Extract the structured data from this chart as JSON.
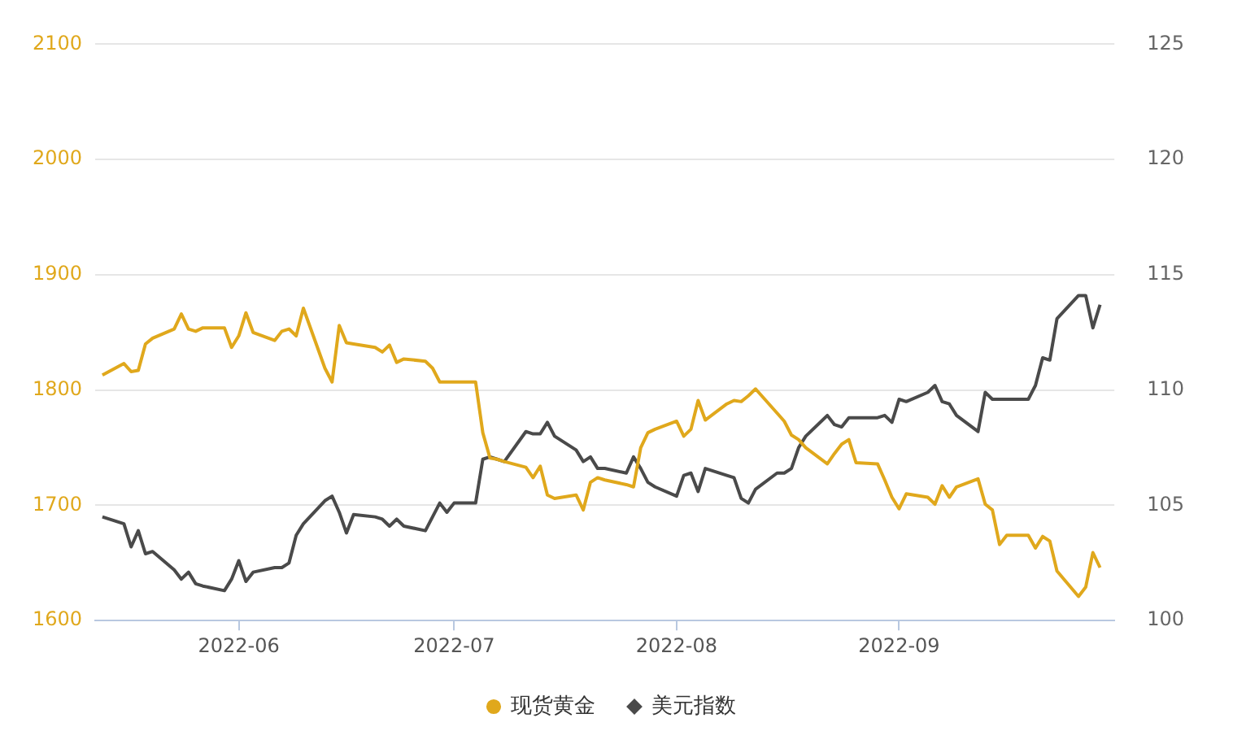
{
  "chart_data": {
    "type": "line",
    "x": [
      "2022-05-13",
      "2022-05-16",
      "2022-05-17",
      "2022-05-18",
      "2022-05-19",
      "2022-05-20",
      "2022-05-23",
      "2022-05-24",
      "2022-05-25",
      "2022-05-26",
      "2022-05-27",
      "2022-05-30",
      "2022-05-31",
      "2022-06-01",
      "2022-06-02",
      "2022-06-03",
      "2022-06-06",
      "2022-06-07",
      "2022-06-08",
      "2022-06-09",
      "2022-06-10",
      "2022-06-13",
      "2022-06-14",
      "2022-06-15",
      "2022-06-16",
      "2022-06-17",
      "2022-06-20",
      "2022-06-21",
      "2022-06-22",
      "2022-06-23",
      "2022-06-24",
      "2022-06-27",
      "2022-06-28",
      "2022-06-29",
      "2022-06-30",
      "2022-07-01",
      "2022-07-04",
      "2022-07-05",
      "2022-07-06",
      "2022-07-07",
      "2022-07-08",
      "2022-07-11",
      "2022-07-12",
      "2022-07-13",
      "2022-07-14",
      "2022-07-15",
      "2022-07-18",
      "2022-07-19",
      "2022-07-20",
      "2022-07-21",
      "2022-07-22",
      "2022-07-25",
      "2022-07-26",
      "2022-07-27",
      "2022-07-28",
      "2022-07-29",
      "2022-08-01",
      "2022-08-02",
      "2022-08-03",
      "2022-08-04",
      "2022-08-05",
      "2022-08-08",
      "2022-08-09",
      "2022-08-10",
      "2022-08-11",
      "2022-08-12",
      "2022-08-15",
      "2022-08-16",
      "2022-08-17",
      "2022-08-18",
      "2022-08-19",
      "2022-08-22",
      "2022-08-23",
      "2022-08-24",
      "2022-08-25",
      "2022-08-26",
      "2022-08-29",
      "2022-08-30",
      "2022-08-31",
      "2022-09-01",
      "2022-09-02",
      "2022-09-05",
      "2022-09-06",
      "2022-09-07",
      "2022-09-08",
      "2022-09-09",
      "2022-09-12",
      "2022-09-13",
      "2022-09-14",
      "2022-09-15",
      "2022-09-16",
      "2022-09-19",
      "2022-09-20",
      "2022-09-21",
      "2022-09-22",
      "2022-09-23",
      "2022-09-26",
      "2022-09-27",
      "2022-09-28",
      "2022-09-29"
    ],
    "series": [
      {
        "name": "现货黄金",
        "color": "#e0a81c",
        "values": [
          1813,
          1823,
          1816,
          1817,
          1840,
          1845,
          1853,
          1866,
          1853,
          1851,
          1854,
          1854,
          1837,
          1847,
          1867,
          1850,
          1843,
          1851,
          1853,
          1847,
          1871,
          1819,
          1807,
          1856,
          1841,
          1840,
          1837,
          1833,
          1839,
          1824,
          1827,
          1825,
          1819,
          1807,
          1807,
          1807,
          1807,
          1763,
          1741,
          1740,
          1738,
          1733,
          1724,
          1734,
          1709,
          1706,
          1709,
          1696,
          1720,
          1724,
          1722,
          1718,
          1716,
          1750,
          1763,
          1766,
          1773,
          1760,
          1766,
          1791,
          1774,
          1788,
          1791,
          1790,
          1795,
          1801,
          1780,
          1773,
          1761,
          1757,
          1750,
          1736,
          1745,
          1753,
          1757,
          1737,
          1736,
          1722,
          1707,
          1697,
          1710,
          1707,
          1701,
          1717,
          1707,
          1716,
          1723,
          1701,
          1696,
          1666,
          1674,
          1674,
          1663,
          1673,
          1669,
          1643,
          1621,
          1629,
          1659,
          1646
        ]
      },
      {
        "name": "美元指数",
        "color": "#4a4a4a",
        "axis": "y2",
        "values": [
          104.5,
          104.2,
          103.2,
          103.9,
          102.9,
          103.0,
          102.2,
          101.8,
          102.1,
          101.6,
          101.5,
          101.3,
          101.8,
          102.6,
          101.7,
          102.1,
          102.3,
          102.3,
          102.5,
          103.7,
          104.2,
          105.2,
          105.4,
          104.7,
          103.8,
          104.6,
          104.5,
          104.4,
          104.1,
          104.4,
          104.1,
          103.9,
          104.5,
          105.1,
          104.7,
          105.1,
          105.1,
          107.0,
          107.1,
          107.0,
          106.9,
          108.2,
          108.1,
          108.1,
          108.6,
          108.0,
          107.4,
          106.9,
          107.1,
          106.6,
          106.6,
          106.4,
          107.1,
          106.6,
          106.0,
          105.8,
          105.4,
          106.3,
          106.4,
          105.6,
          106.6,
          106.3,
          106.2,
          105.3,
          105.1,
          105.7,
          106.4,
          106.4,
          106.6,
          107.5,
          108.0,
          108.9,
          108.5,
          108.4,
          108.8,
          108.8,
          108.8,
          108.9,
          108.6,
          109.6,
          109.5,
          109.9,
          110.2,
          109.5,
          109.4,
          108.9,
          108.2,
          109.9,
          109.6,
          109.6,
          109.6,
          109.6,
          110.2,
          111.4,
          111.3,
          113.1,
          114.1,
          114.1,
          112.7,
          113.7
        ]
      }
    ],
    "xlim": [
      "2022-05-12",
      "2022-10-01"
    ],
    "xticks": [
      "2022-06",
      "2022-07",
      "2022-08",
      "2022-09"
    ],
    "ylim": [
      1600,
      2100
    ],
    "yticks": [
      1600,
      1700,
      1800,
      1900,
      2000,
      2100
    ],
    "y2lim": [
      100,
      125
    ],
    "y2ticks": [
      100,
      105,
      110,
      115,
      120,
      125
    ],
    "grid": "y",
    "legend": "bottom",
    "marker": "none",
    "line_style": "solid"
  }
}
